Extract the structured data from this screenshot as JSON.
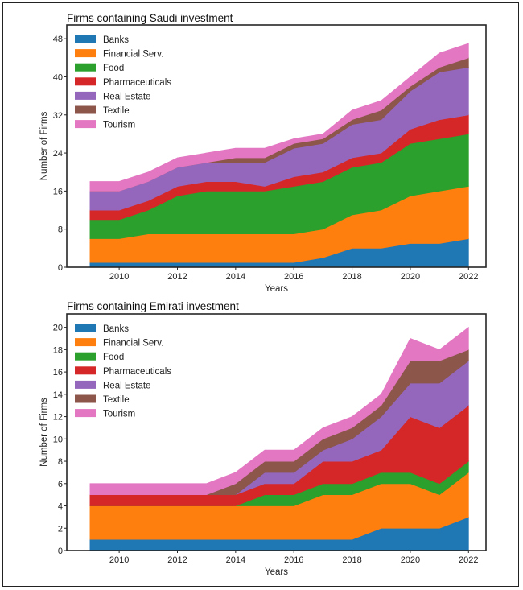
{
  "chart_data": [
    {
      "type": "area",
      "stacked": true,
      "title": "Firms containing Saudi investment",
      "xlabel": "Years",
      "ylabel": "Number of Firms",
      "x": [
        2009,
        2010,
        2011,
        2012,
        2013,
        2014,
        2015,
        2016,
        2017,
        2018,
        2019,
        2020,
        2021,
        2022
      ],
      "xticks": [
        2010,
        2012,
        2014,
        2016,
        2018,
        2020,
        2022
      ],
      "yticks": [
        0,
        8,
        16,
        24,
        32,
        40,
        48
      ],
      "xlim": [
        2008.2,
        2022.6
      ],
      "ylim": [
        0,
        50.9
      ],
      "legend_position": "top-left",
      "grid": false,
      "series": [
        {
          "name": "Banks",
          "color": "#1f77b4",
          "values": [
            1,
            1,
            1,
            1,
            1,
            1,
            1,
            1,
            2,
            4,
            4,
            5,
            5,
            6
          ]
        },
        {
          "name": "Financial Serv.",
          "color": "#ff7f0e",
          "values": [
            5,
            5,
            6,
            6,
            6,
            6,
            6,
            6,
            6,
            7,
            8,
            10,
            11,
            11
          ]
        },
        {
          "name": "Food",
          "color": "#2ca02c",
          "values": [
            4,
            4,
            5,
            8,
            9,
            9,
            9,
            10,
            10,
            10,
            10,
            11,
            11,
            11
          ]
        },
        {
          "name": "Pharmaceuticals",
          "color": "#d62728",
          "values": [
            2,
            2,
            2,
            2,
            2,
            2,
            1,
            2,
            2,
            2,
            2,
            3,
            4,
            4
          ]
        },
        {
          "name": "Real Estate",
          "color": "#9467bd",
          "values": [
            4,
            4,
            4,
            4,
            4,
            4,
            5,
            6,
            6,
            7,
            7,
            8,
            10,
            10
          ]
        },
        {
          "name": "Textile",
          "color": "#8c564b",
          "values": [
            0,
            0,
            0,
            0,
            0,
            1,
            1,
            1,
            1,
            1,
            2,
            1,
            1,
            2
          ]
        },
        {
          "name": "Tourism",
          "color": "#e377c2",
          "values": [
            2,
            2,
            2,
            2,
            2,
            2,
            2,
            1,
            1,
            2,
            2,
            2,
            3,
            3
          ]
        }
      ]
    },
    {
      "type": "area",
      "stacked": true,
      "title": "Firms containing Emirati investment",
      "xlabel": "Years",
      "ylabel": "Number of Firms",
      "x": [
        2009,
        2010,
        2011,
        2012,
        2013,
        2014,
        2015,
        2016,
        2017,
        2018,
        2019,
        2020,
        2021,
        2022
      ],
      "xticks": [
        2010,
        2012,
        2014,
        2016,
        2018,
        2020,
        2022
      ],
      "yticks": [
        0,
        2,
        4,
        6,
        8,
        10,
        12,
        14,
        16,
        18,
        20
      ],
      "xlim": [
        2008.2,
        2022.6
      ],
      "ylim": [
        0,
        21.2
      ],
      "legend_position": "top-left",
      "grid": false,
      "series": [
        {
          "name": "Banks",
          "color": "#1f77b4",
          "values": [
            1,
            1,
            1,
            1,
            1,
            1,
            1,
            1,
            1,
            1,
            2,
            2,
            2,
            3
          ]
        },
        {
          "name": "Financial Serv.",
          "color": "#ff7f0e",
          "values": [
            3,
            3,
            3,
            3,
            3,
            3,
            3,
            3,
            4,
            4,
            4,
            4,
            3,
            4
          ]
        },
        {
          "name": "Food",
          "color": "#2ca02c",
          "values": [
            0,
            0,
            0,
            0,
            0,
            0,
            1,
            1,
            1,
            1,
            1,
            1,
            1,
            1
          ]
        },
        {
          "name": "Pharmaceuticals",
          "color": "#d62728",
          "values": [
            1,
            1,
            1,
            1,
            1,
            1,
            1,
            1,
            2,
            2,
            2,
            5,
            5,
            5
          ]
        },
        {
          "name": "Real Estate",
          "color": "#9467bd",
          "values": [
            0,
            0,
            0,
            0,
            0,
            0,
            1,
            1,
            1,
            2,
            3,
            3,
            4,
            4
          ]
        },
        {
          "name": "Textile",
          "color": "#8c564b",
          "values": [
            0,
            0,
            0,
            0,
            0,
            1,
            1,
            1,
            1,
            1,
            1,
            2,
            2,
            1
          ]
        },
        {
          "name": "Tourism",
          "color": "#e377c2",
          "values": [
            1,
            1,
            1,
            1,
            1,
            1,
            1,
            1,
            1,
            1,
            1,
            2,
            1,
            2
          ]
        }
      ]
    }
  ]
}
